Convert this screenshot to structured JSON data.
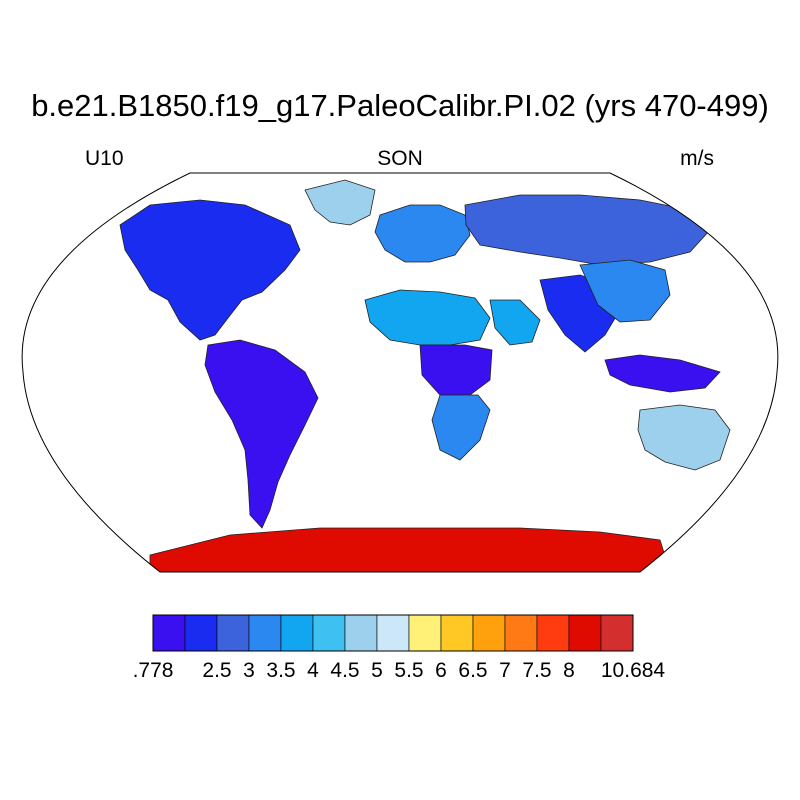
{
  "header": {
    "title": "b.e21.B1850.f19_g17.PaleoCalibr.PI.02 (yrs 470-499)",
    "left_label": "U10",
    "center_label": "SON",
    "right_label": "m/s"
  },
  "map": {
    "projection": "Robinson",
    "variable": "U10",
    "season": "SON",
    "units": "m/s",
    "ocean_masked": true,
    "regions": [
      {
        "name": "north-america",
        "level": 1
      },
      {
        "name": "greenland",
        "level": 6
      },
      {
        "name": "south-america",
        "level": 0
      },
      {
        "name": "europe",
        "level": 3
      },
      {
        "name": "siberia",
        "level": 2
      },
      {
        "name": "north-africa",
        "level": 4
      },
      {
        "name": "central-africa",
        "level": 0
      },
      {
        "name": "southern-africa",
        "level": 3
      },
      {
        "name": "arabia",
        "level": 4
      },
      {
        "name": "south-asia",
        "level": 1
      },
      {
        "name": "east-asia",
        "level": 3
      },
      {
        "name": "maritime-continent",
        "level": 0
      },
      {
        "name": "australia",
        "level": 6
      },
      {
        "name": "antarctica",
        "level": 13
      }
    ]
  },
  "colorbar": {
    "colors": [
      "#3a10f0",
      "#1a2cf0",
      "#3c63dc",
      "#2a88f0",
      "#13a6f0",
      "#3ec0f0",
      "#9cd0ec",
      "#cce8f8",
      "#fff077",
      "#ffc825",
      "#ffa10c",
      "#ff7a14",
      "#ff3c0f",
      "#e00b00",
      "#d32f2f"
    ],
    "labels": [
      ".778",
      "2.5",
      "3",
      "3.5",
      "4",
      "4.5",
      "5",
      "5.5",
      "6",
      "6.5",
      "7",
      "7.5",
      "8",
      "10.684"
    ]
  }
}
